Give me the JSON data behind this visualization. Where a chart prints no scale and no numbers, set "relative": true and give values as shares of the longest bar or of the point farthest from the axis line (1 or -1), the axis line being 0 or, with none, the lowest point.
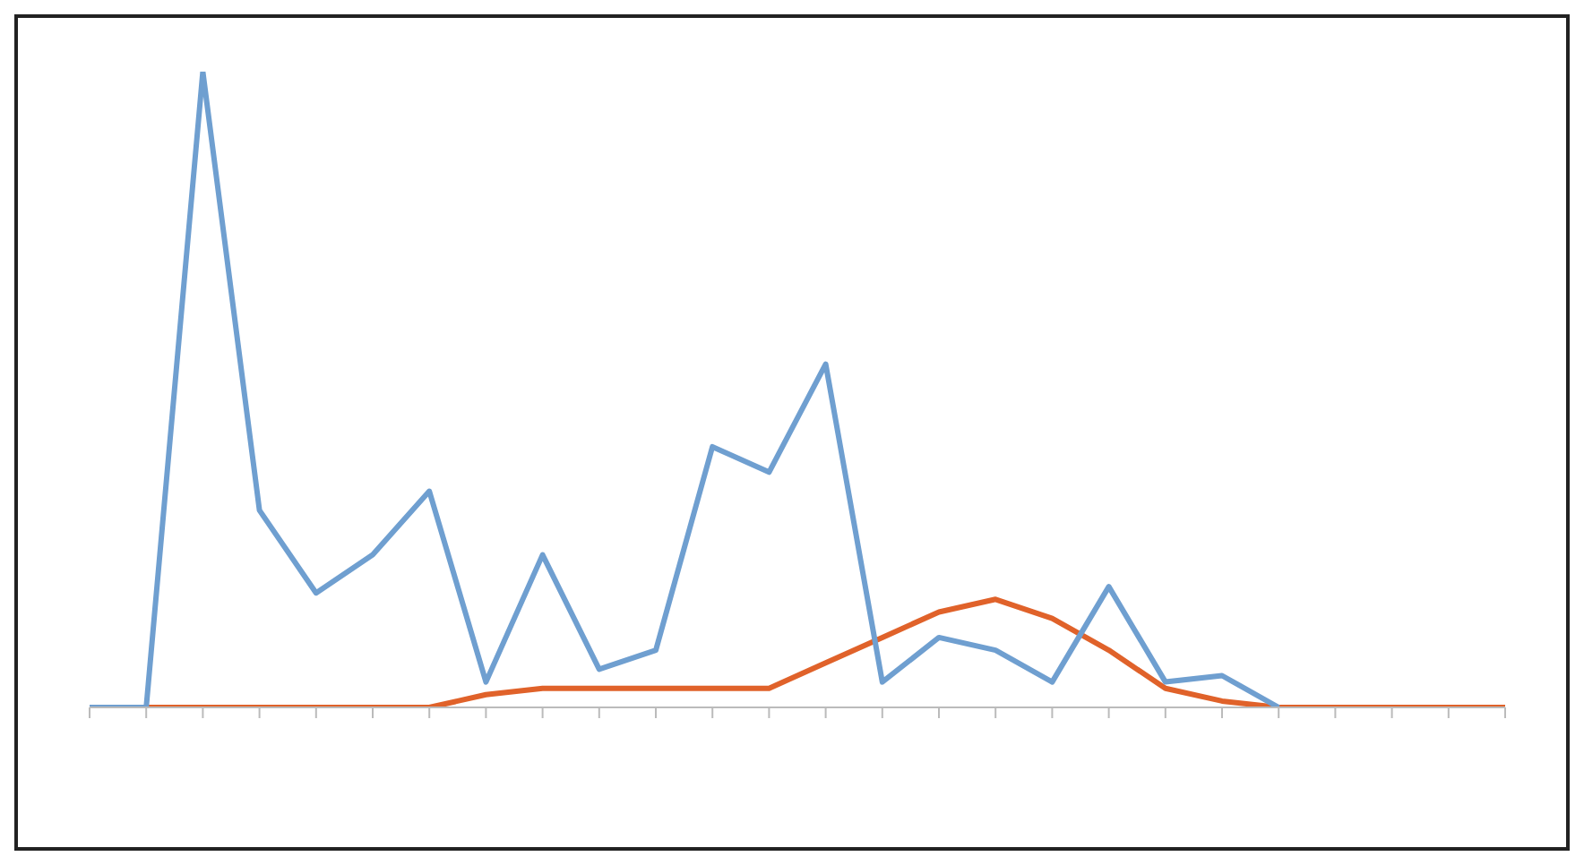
{
  "chart_data": {
    "type": "line",
    "relative": true,
    "categories": [
      null,
      null,
      null,
      null,
      null,
      null,
      null,
      null,
      null,
      null,
      null,
      null,
      null,
      null,
      null,
      null,
      null,
      null,
      null,
      null,
      null,
      null,
      null,
      null,
      null,
      null
    ],
    "series": [
      {
        "color": "#e0622a",
        "values": [
          0,
          0,
          0,
          0,
          0,
          0,
          0,
          0.02,
          0.03,
          0.03,
          0.03,
          0.03,
          0.03,
          0.07,
          0.11,
          0.15,
          0.17,
          0.14,
          0.09,
          0.03,
          0.01,
          0,
          0,
          0,
          0,
          0
        ]
      },
      {
        "color": "#6f9fd0",
        "values": [
          0,
          0,
          1,
          0.31,
          0.18,
          0.24,
          0.34,
          0.04,
          0.24,
          0.06,
          0.09,
          0.41,
          0.37,
          0.54,
          0.04,
          0.11,
          0.09,
          0.04,
          0.19,
          0.04,
          0.05,
          0,
          null,
          null,
          null,
          null
        ]
      }
    ],
    "grid": false,
    "legend": false
  }
}
